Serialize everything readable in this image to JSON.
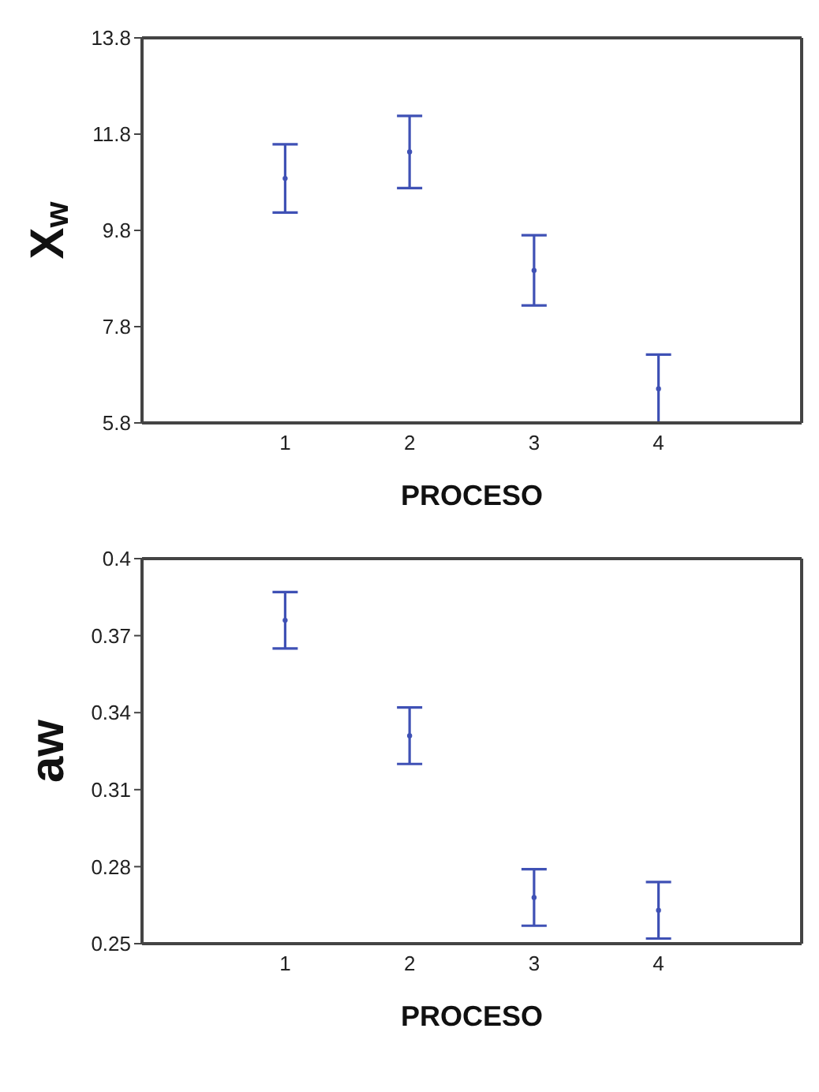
{
  "chart_data": [
    {
      "type": "scatter",
      "xlabel": "PROCESO",
      "ylabel": "X$_{w}$",
      "x": [
        1,
        2,
        3,
        4
      ],
      "values": [
        10.88,
        11.43,
        8.97,
        6.51
      ],
      "errors": [
        0.71,
        0.75,
        0.73,
        0.71
      ],
      "color": "#3f51b5",
      "marker": "circle",
      "xlim": [
        -0.15,
        5.15
      ],
      "xticks": [
        1,
        2,
        3,
        4
      ],
      "ylim": [
        5.8,
        13.8
      ],
      "yticks": [
        5.8,
        7.8,
        9.8,
        11.8,
        13.8
      ]
    },
    {
      "type": "scatter",
      "xlabel": "PROCESO",
      "ylabel": "aw",
      "x": [
        1,
        2,
        3,
        4
      ],
      "values": [
        0.376,
        0.331,
        0.268,
        0.263
      ],
      "errors": [
        0.011,
        0.011,
        0.011,
        0.011
      ],
      "color": "#3f51b5",
      "marker": "circle",
      "xlim": [
        -0.15,
        5.15
      ],
      "xticks": [
        1,
        2,
        3,
        4
      ],
      "ylim": [
        0.25,
        0.4
      ],
      "yticks": [
        0.25,
        0.28,
        0.31,
        0.34,
        0.37,
        0.4
      ]
    }
  ]
}
